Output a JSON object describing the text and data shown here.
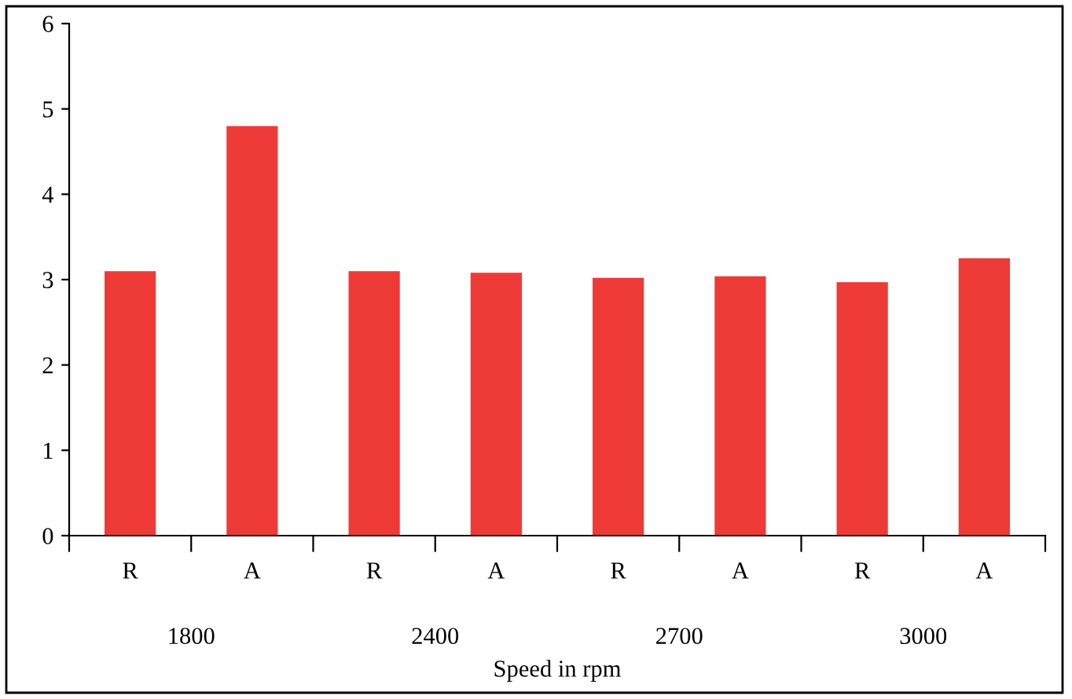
{
  "chart_data": {
    "type": "bar",
    "xlabel": "Speed in rpm",
    "categories": [
      "R",
      "A",
      "R",
      "A",
      "R",
      "A",
      "R",
      "A"
    ],
    "values": [
      3.1,
      4.8,
      3.1,
      3.08,
      3.02,
      3.04,
      2.97,
      3.25
    ],
    "color": "#ee3a36",
    "ylim": [
      0,
      6
    ],
    "yticks": [
      0,
      1,
      2,
      3,
      4,
      5,
      6
    ],
    "annotations": [
      "1800",
      "2400",
      "2700",
      "3000"
    ],
    "grid": false,
    "legend": false
  }
}
